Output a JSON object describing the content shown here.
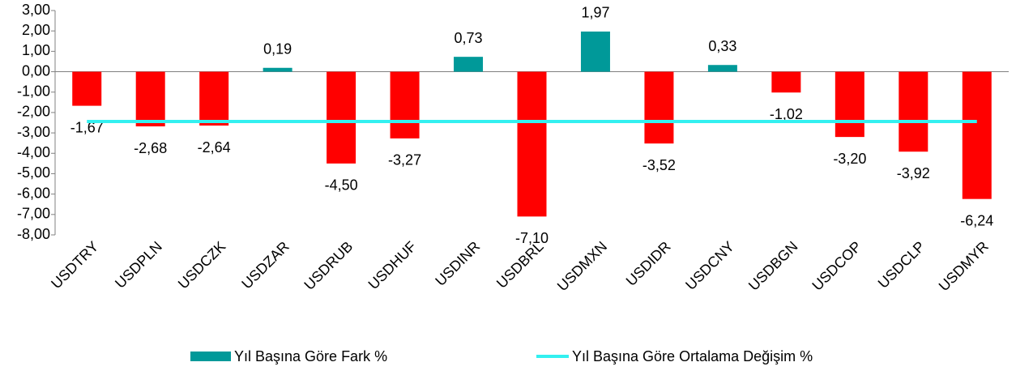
{
  "chart_data": {
    "type": "bar",
    "categories": [
      "USDTRY",
      "USDPLN",
      "USDCZK",
      "USDZAR",
      "USDRUB",
      "USDHUF",
      "USDINR",
      "USDBRL",
      "USDMXN",
      "USDIDR",
      "USDCNY",
      "USDBGN",
      "USDCOP",
      "USDCLP",
      "USDMYR"
    ],
    "series": [
      {
        "name": "Yıl Başına Göre Fark %",
        "type": "bar",
        "color": "#009999",
        "negative_color": "#ff0000",
        "values": [
          -1.67,
          -2.68,
          -2.64,
          0.19,
          -4.5,
          -3.27,
          0.73,
          -7.1,
          1.97,
          -3.52,
          0.33,
          -1.02,
          -3.2,
          -3.92,
          -6.24
        ],
        "value_labels": [
          "-1,67",
          "-2,68",
          "-2,64",
          "0,19",
          "-4,50",
          "-3,27",
          "0,73",
          "-7,10",
          "1,97",
          "-3,52",
          "0,33",
          "-1,02",
          "-3,20",
          "-3,92",
          "-6,24"
        ]
      },
      {
        "name": "Yıl Başına Göre Ortalama Değişim %",
        "type": "line",
        "color": "#33f0f0",
        "values": [
          -2.44,
          -2.44,
          -2.44,
          -2.44,
          -2.44,
          -2.44,
          -2.44,
          -2.44,
          -2.44,
          -2.44,
          -2.44,
          -2.44,
          -2.44,
          -2.44,
          -2.44
        ]
      }
    ],
    "ylim": [
      -8,
      3
    ],
    "yticks": [
      {
        "value": 3,
        "label": "3,00"
      },
      {
        "value": 2,
        "label": "2,00"
      },
      {
        "value": 1,
        "label": "1,00"
      },
      {
        "value": 0,
        "label": "0,00"
      },
      {
        "value": -1,
        "label": "-1,00"
      },
      {
        "value": -2,
        "label": "-2,00"
      },
      {
        "value": -3,
        "label": "-3,00"
      },
      {
        "value": -4,
        "label": "-4,00"
      },
      {
        "value": -5,
        "label": "-5,00"
      },
      {
        "value": -6,
        "label": "-6,00"
      },
      {
        "value": -7,
        "label": "-7,00"
      },
      {
        "value": -8,
        "label": "-8,00"
      }
    ],
    "grid": false,
    "legend": "bottom"
  }
}
